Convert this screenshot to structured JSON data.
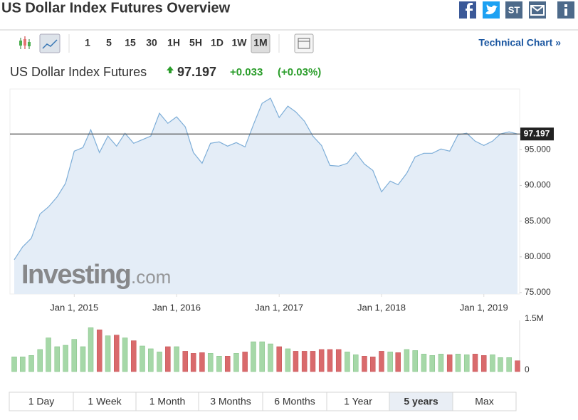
{
  "header": {
    "title": "US Dollar Index Futures Overview",
    "share_label": "ST"
  },
  "toolbar": {
    "intervals": [
      "1",
      "5",
      "15",
      "30",
      "1H",
      "5H",
      "1D",
      "1W",
      "1M"
    ],
    "selected": "1M",
    "link": "Technical Chart »"
  },
  "quote": {
    "name": "US Dollar Index Futures",
    "change": "+0.033",
    "change_percent": "(+0.03%)"
  },
  "chart_data": {
    "type": "area",
    "price": 97.197,
    "x": [
      "2014-06-01",
      "2014-07-01",
      "2014-08-01",
      "2014-09-01",
      "2014-10-01",
      "2014-11-01",
      "2014-12-01",
      "2015-01-01",
      "2015-02-01",
      "2015-03-01",
      "2015-04-01",
      "2015-05-01",
      "2015-06-01",
      "2015-07-01",
      "2015-08-01",
      "2015-09-01",
      "2015-10-01",
      "2015-11-01",
      "2015-12-01",
      "2016-01-01",
      "2016-02-01",
      "2016-03-01",
      "2016-04-01",
      "2016-05-01",
      "2016-06-01",
      "2016-07-01",
      "2016-08-01",
      "2016-09-01",
      "2016-10-01",
      "2016-11-01",
      "2016-12-01",
      "2017-01-01",
      "2017-02-01",
      "2017-03-01",
      "2017-04-01",
      "2017-05-01",
      "2017-06-01",
      "2017-07-01",
      "2017-08-01",
      "2017-09-01",
      "2017-10-01",
      "2017-11-01",
      "2017-12-01",
      "2018-01-01",
      "2018-02-01",
      "2018-03-01",
      "2018-04-01",
      "2018-05-01",
      "2018-06-01",
      "2018-07-01",
      "2018-08-01",
      "2018-09-01",
      "2018-10-01",
      "2018-11-01",
      "2018-12-01",
      "2019-01-01",
      "2019-02-01",
      "2019-03-01",
      "2019-04-01",
      "2019-05-01"
    ],
    "xlim": [
      "2014-06-01",
      "2019-05-01"
    ],
    "xticks": [
      {
        "value": "2015-01-01",
        "label": "Jan 1, 2015"
      },
      {
        "value": "2016-01-01",
        "label": "Jan 1, 2016"
      },
      {
        "value": "2017-01-01",
        "label": "Jan 1, 2017"
      },
      {
        "value": "2018-01-01",
        "label": "Jan 1, 2018"
      },
      {
        "value": "2019-01-01",
        "label": "Jan 1, 2019"
      }
    ],
    "ylim": [
      74.8,
      103.5
    ],
    "yticks": [
      {
        "value": 75,
        "label": "75.000"
      },
      {
        "value": 80,
        "label": "80.000"
      },
      {
        "value": 85,
        "label": "85.000"
      },
      {
        "value": 90,
        "label": "90.000"
      },
      {
        "value": 95,
        "label": "95.000"
      }
    ],
    "y2lim": [
      0,
      1500000
    ],
    "y2ticks": [
      0,
      {
        "value": 1500000,
        "label": "1.5M"
      }
    ],
    "series": [
      {
        "color": "#7eaed8",
        "fill": "#e4edf7",
        "values": [
          79.6,
          81.4,
          82.6,
          86.0,
          87.0,
          88.4,
          90.3,
          94.8,
          95.3,
          97.8,
          94.6,
          96.9,
          95.5,
          97.3,
          95.9,
          96.4,
          96.9,
          100.1,
          98.7,
          99.6,
          98.2,
          94.6,
          93.1,
          95.9,
          96.1,
          95.5,
          96.0,
          95.4,
          98.5,
          101.5,
          102.2,
          99.5,
          101.1,
          100.3,
          99.0,
          96.9,
          95.6,
          92.8,
          92.7,
          93.1,
          94.6,
          93.0,
          92.1,
          89.1,
          90.6,
          90.1,
          91.7,
          94.0,
          94.5,
          94.5,
          95.1,
          94.8,
          97.1,
          97.3,
          96.2,
          95.6,
          96.2,
          97.2,
          97.5,
          97.197
        ]
      },
      {
        "axis": "y2",
        "up_color": "#a6d8a8",
        "down_color": "#d96a6c",
        "values": [
          420000,
          420000,
          460000,
          630000,
          960000,
          710000,
          750000,
          920000,
          710000,
          1250000,
          1190000,
          1020000,
          1040000,
          960000,
          880000,
          730000,
          650000,
          560000,
          710000,
          710000,
          580000,
          520000,
          540000,
          520000,
          440000,
          440000,
          520000,
          560000,
          850000,
          850000,
          790000,
          710000,
          650000,
          580000,
          580000,
          580000,
          630000,
          630000,
          630000,
          560000,
          480000,
          440000,
          420000,
          580000,
          560000,
          540000,
          630000,
          600000,
          500000,
          460000,
          500000,
          480000,
          500000,
          480000,
          500000,
          460000,
          480000,
          400000,
          400000,
          310000
        ]
      }
    ],
    "watermark": [
      "Investing",
      ".com"
    ]
  },
  "ranges": {
    "labels": [
      "1 Day",
      "1 Week",
      "1 Month",
      "3 Months",
      "6 Months",
      "1 Year",
      "5 years",
      "Max"
    ],
    "selected": "5 years"
  }
}
